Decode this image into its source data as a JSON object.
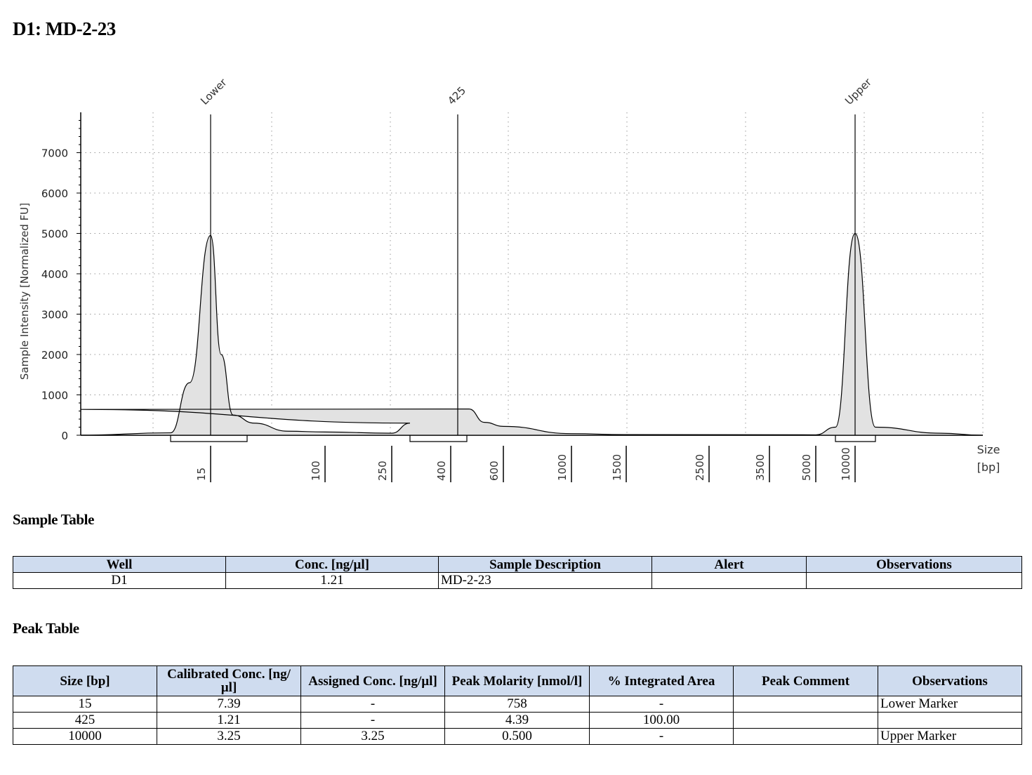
{
  "page": {
    "title": "D1: MD-2-23"
  },
  "chart_data": {
    "type": "area",
    "ylabel": "Sample Intensity [Normalized FU]",
    "xlabel": "Size\n[bp]",
    "ylim": [
      0,
      8000
    ],
    "y_ticks": [
      0,
      1000,
      2000,
      3000,
      4000,
      5000,
      6000,
      7000
    ],
    "x_ticks": [
      "15",
      "100",
      "250",
      "400",
      "600",
      "1000",
      "1500",
      "2500",
      "3500",
      "5000",
      "10000"
    ],
    "grid": true,
    "peak_labels": [
      "Lower",
      "425",
      "Upper"
    ],
    "trace": [
      {
        "x": "<15",
        "y": 0
      },
      {
        "x": "~13",
        "y": 60
      },
      {
        "x": "~14",
        "y": 1300
      },
      {
        "x": "15",
        "y": 4950
      },
      {
        "x": "~17",
        "y": 2000
      },
      {
        "x": "~20",
        "y": 500
      },
      {
        "x": "~25",
        "y": 300
      },
      {
        "x": "~50",
        "y": 100
      },
      {
        "x": "100",
        "y": 80
      },
      {
        "x": "250",
        "y": 50
      },
      {
        "x": "~320",
        "y": 300
      },
      {
        "x": "425",
        "y": 640
      },
      {
        "x": "~480",
        "y": 650
      },
      {
        "x": "~550",
        "y": 320
      },
      {
        "x": "600",
        "y": 220
      },
      {
        "x": "1000",
        "y": 40
      },
      {
        "x": "1500",
        "y": 15
      },
      {
        "x": "5000",
        "y": 10
      },
      {
        "x": "~9000",
        "y": 200
      },
      {
        "x": "10000",
        "y": 5000
      },
      {
        "x": "~11000",
        "y": 200
      },
      {
        "x": "~14000",
        "y": 50
      },
      {
        "x": ">15000",
        "y": 0
      }
    ],
    "integration_regions": [
      {
        "from": "~13",
        "to": "~22"
      },
      {
        "from": "~320",
        "to": "~500"
      },
      {
        "from": "~9000",
        "to": "~11000"
      }
    ]
  },
  "sample_table": {
    "title": "Sample Table",
    "headers": [
      "Well",
      "Conc. [ng/µl]",
      "Sample Description",
      "Alert",
      "Observations"
    ],
    "rows": [
      [
        "D1",
        "1.21",
        "MD-2-23",
        "",
        ""
      ]
    ]
  },
  "peak_table": {
    "title": "Peak Table",
    "headers": [
      "Size [bp]",
      "Calibrated Conc. [ng/µl]",
      "Assigned Conc. [ng/µl]",
      "Peak Molarity [nmol/l]",
      "% Integrated Area",
      "Peak Comment",
      "Observations"
    ],
    "rows": [
      [
        "15",
        "7.39",
        "-",
        "758",
        "-",
        "",
        "Lower Marker"
      ],
      [
        "425",
        "1.21",
        "-",
        "4.39",
        "100.00",
        "",
        ""
      ],
      [
        "10000",
        "3.25",
        "3.25",
        "0.500",
        "-",
        "",
        "Upper Marker"
      ]
    ]
  },
  "colors": {
    "table_header_bg": "#cfdcef",
    "trace_fill": "#e2e2e2",
    "trace_stroke": "#000000",
    "grid": "#999999"
  }
}
